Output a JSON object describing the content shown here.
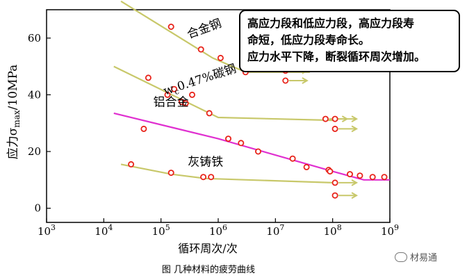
{
  "chart_data": {
    "type": "scatter",
    "title": "",
    "caption": "图  几种材料的疲劳曲线",
    "xlabel": "循环周次/次",
    "ylabel": "应力σmax/10MPa",
    "xscale": "log",
    "xlim": [
      1000,
      1000000000
    ],
    "ylim": [
      -5,
      70
    ],
    "x_ticks": [
      {
        "value": 1000,
        "base": "10",
        "exp": "3"
      },
      {
        "value": 10000,
        "base": "10",
        "exp": "4"
      },
      {
        "value": 100000,
        "base": "10",
        "exp": "5"
      },
      {
        "value": 1000000,
        "base": "10",
        "exp": "6"
      },
      {
        "value": 10000000,
        "base": "10",
        "exp": "7"
      },
      {
        "value": 100000000,
        "base": "10",
        "exp": "8"
      },
      {
        "value": 1000000000,
        "base": "10",
        "exp": "9"
      }
    ],
    "y_ticks": [
      0,
      20,
      40,
      60
    ],
    "grid": false,
    "series": [
      {
        "name": "合金钢",
        "color": "#c8c86a",
        "curve": [
          [
            20000,
            73
          ],
          [
            800000,
            53
          ],
          [
            3000000,
            48
          ],
          [
            40000000,
            48
          ]
        ],
        "points": [
          [
            150000,
            64
          ],
          [
            500000,
            56
          ],
          [
            1100000,
            53
          ],
          [
            3000000,
            48
          ],
          [
            15000000,
            48.5
          ],
          [
            15000000,
            45
          ]
        ],
        "runouts": [
          [
            15000000,
            48.5
          ],
          [
            15000000,
            45
          ]
        ]
      },
      {
        "name": "wc0.47%碳钢",
        "color": "#c8c86a",
        "curve": [
          [
            15000,
            50
          ],
          [
            1000000,
            32
          ],
          [
            100000000,
            31
          ]
        ],
        "points": [
          [
            60000,
            46
          ],
          [
            130000,
            40
          ],
          [
            170000,
            42
          ],
          [
            230000,
            37.5
          ],
          [
            270000,
            37
          ],
          [
            350000,
            40
          ],
          [
            700000,
            33.5
          ],
          [
            75000000,
            31.5
          ],
          [
            110000000,
            31.5
          ],
          [
            110000000,
            28
          ]
        ],
        "runouts": [
          [
            75000000,
            31.5
          ],
          [
            110000000,
            31.5
          ],
          [
            110000000,
            28
          ]
        ]
      },
      {
        "name": "铝合金",
        "color": "#e030d0",
        "curve": [
          [
            15000,
            33.5
          ],
          [
            1000000,
            24.5
          ],
          [
            100000000,
            13
          ],
          [
            350000000,
            10
          ],
          [
            1000000000,
            10
          ]
        ],
        "points": [
          [
            50000,
            28
          ],
          [
            1500000,
            24.5
          ],
          [
            2500000,
            23
          ],
          [
            5000000,
            20
          ],
          [
            20000000,
            17.5
          ],
          [
            35000000,
            14.5
          ],
          [
            85000000,
            13.5
          ],
          [
            200000000,
            12
          ],
          [
            300000000,
            11.5
          ],
          [
            500000000,
            11
          ],
          [
            800000000,
            11
          ]
        ],
        "runouts": []
      },
      {
        "name": "灰铸铁",
        "color": "#c8c86a",
        "curve": [
          [
            20000,
            15.5
          ],
          [
            150000,
            12
          ],
          [
            600000,
            10.5
          ],
          [
            100000000,
            9
          ]
        ],
        "points": [
          [
            30000,
            15.5
          ],
          [
            150000,
            12.5
          ],
          [
            550000,
            11
          ],
          [
            750000,
            11
          ],
          [
            90000000,
            13
          ],
          [
            110000000,
            9
          ],
          [
            110000000,
            4.5
          ]
        ],
        "runouts": [
          [
            110000000,
            9
          ],
          [
            110000000,
            4.5
          ]
        ]
      }
    ],
    "series_labels": [
      {
        "text": "合金钢",
        "x": 600000,
        "y": 62
      },
      {
        "text": "wc0.47%碳钢",
        "x": 500000,
        "y": 44
      },
      {
        "text": "铝合金",
        "x": 150000,
        "y": 36
      },
      {
        "text": "灰铸铁",
        "x": 600000,
        "y": 15
      }
    ],
    "annotation": [
      "高应力段和低应力段，高应力段寿",
      "命短，低应力段寿命长。",
      "应力水平下降，断裂循环周次增加。"
    ],
    "watermark": "材易通"
  }
}
